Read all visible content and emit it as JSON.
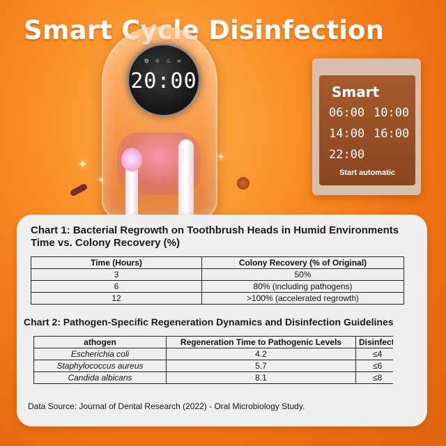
{
  "headline": "Smart Cycle Disinfection",
  "device": {
    "display_time": "20:00",
    "status_icons": "⚙ ☼ ♨ ∞"
  },
  "schedule_panel": {
    "title": "Smart",
    "times": [
      "06:00",
      "10:00",
      "14:00",
      "16:00",
      "22:00"
    ],
    "footer": "Start automatic"
  },
  "chart1": {
    "title_line1": "Chart 1: Bacterial Regrowth on Toothbrush Heads in Humid Environments",
    "title_line2": "Time vs. Colony Recovery (%)",
    "headers": [
      "Time (Hours)",
      "Colony Recovery (% of Original)"
    ],
    "rows": [
      [
        "3",
        "50%"
      ],
      [
        "6",
        "80% (including pathogens)"
      ],
      [
        "12",
        ">100% (accelerated regrowth)"
      ]
    ]
  },
  "chart2": {
    "title": "Chart 2: Pathogen-Specific Regeneration Dynamics and Disinfection Guidelines",
    "headers": [
      "athogen",
      "Regeneration Time to Pathogenic Levels",
      "Disinfecti"
    ],
    "rows": [
      [
        "Escherichia coli",
        "4.2",
        "≤4"
      ],
      [
        "Staphylococcus aureus",
        "5.7",
        "≤6"
      ],
      [
        "Candida albicans",
        "8.1",
        "≤8"
      ]
    ]
  },
  "source": "Data Source: Journal of Dental Research (2022) - Oral Microbiology Study.",
  "colors": {
    "background": "#f98a22",
    "card": "#f1efee",
    "schedule_panel": "#8a4520"
  }
}
